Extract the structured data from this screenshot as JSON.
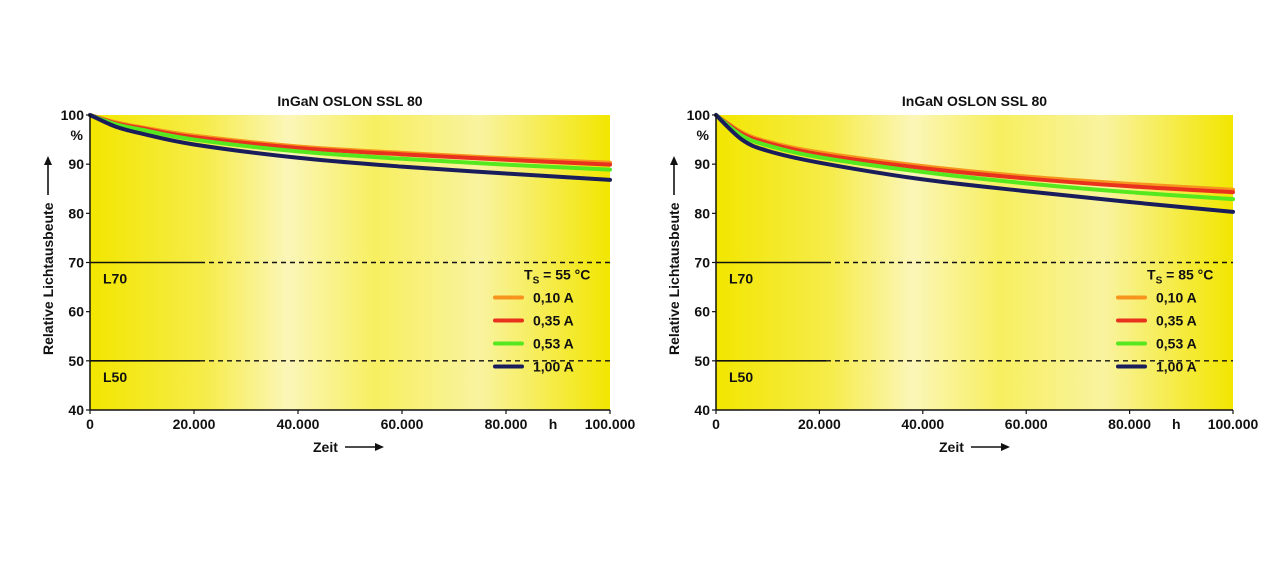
{
  "chart_data": [
    {
      "type": "line",
      "title": "InGaN OSLON SSL 80",
      "ylabel": "Relative Lichtausbeute",
      "yunit": "%",
      "xlabel": "Zeit",
      "xunit": "h",
      "xlim": [
        0,
        100000
      ],
      "ylim": [
        40,
        100
      ],
      "x_ticks": [
        0,
        20000,
        40000,
        60000,
        80000,
        100000
      ],
      "x_tick_labels": [
        "0",
        "20.000",
        "40.000",
        "60.000",
        "80.000",
        "100.000"
      ],
      "y_ticks": [
        40,
        50,
        60,
        70,
        80,
        90,
        100
      ],
      "y_tick_labels": [
        "40",
        "50",
        "60",
        "70",
        "80",
        "90",
        "100"
      ],
      "reference_lines": [
        {
          "label": "L70",
          "y": 70
        },
        {
          "label": "L50",
          "y": 50
        }
      ],
      "legend_title": {
        "main": "T",
        "sub": "S",
        "rest": " = 55 °C"
      },
      "legend_position": "bottom-right",
      "series": [
        {
          "name": "0,10 A",
          "color": "#f7941d",
          "x": [
            0,
            5000,
            10000,
            20000,
            40000,
            60000,
            80000,
            100000
          ],
          "y": [
            100,
            98.5,
            97.5,
            95.8,
            93.6,
            92.3,
            91.2,
            90.3
          ]
        },
        {
          "name": "0,35 A",
          "color": "#e8321e",
          "x": [
            0,
            5000,
            10000,
            20000,
            40000,
            60000,
            80000,
            100000
          ],
          "y": [
            100,
            98.3,
            97.3,
            95.5,
            93.3,
            92.0,
            90.9,
            89.9
          ]
        },
        {
          "name": "0,53 A",
          "color": "#55e81e",
          "x": [
            0,
            5000,
            10000,
            20000,
            40000,
            60000,
            80000,
            100000
          ],
          "y": [
            100,
            98.1,
            97.0,
            95.0,
            92.6,
            91.1,
            89.9,
            88.9
          ]
        },
        {
          "name": "1,00 A",
          "color": "#1a1d5c",
          "x": [
            0,
            5000,
            10000,
            20000,
            40000,
            60000,
            80000,
            100000
          ],
          "y": [
            100,
            97.6,
            96.2,
            94.0,
            91.3,
            89.5,
            88.1,
            86.8
          ]
        }
      ]
    },
    {
      "type": "line",
      "title": "InGaN OSLON SSL 80",
      "ylabel": "Relative Lichtausbeute",
      "yunit": "%",
      "xlabel": "Zeit",
      "xunit": "h",
      "xlim": [
        0,
        100000
      ],
      "ylim": [
        40,
        100
      ],
      "x_ticks": [
        0,
        20000,
        40000,
        60000,
        80000,
        100000
      ],
      "x_tick_labels": [
        "0",
        "20.000",
        "40.000",
        "60.000",
        "80.000",
        "100.000"
      ],
      "y_ticks": [
        40,
        50,
        60,
        70,
        80,
        90,
        100
      ],
      "y_tick_labels": [
        "40",
        "50",
        "60",
        "70",
        "80",
        "90",
        "100"
      ],
      "reference_lines": [
        {
          "label": "L70",
          "y": 70
        },
        {
          "label": "L50",
          "y": 50
        }
      ],
      "legend_title": {
        "main": "T",
        "sub": "S",
        "rest": " = 85 °C"
      },
      "legend_position": "bottom-right",
      "series": [
        {
          "name": "0,10 A",
          "color": "#f7941d",
          "x": [
            0,
            5000,
            10000,
            20000,
            40000,
            60000,
            80000,
            100000
          ],
          "y": [
            100,
            96.5,
            94.6,
            92.4,
            89.6,
            87.5,
            86.0,
            84.8
          ]
        },
        {
          "name": "0,35 A",
          "color": "#e8321e",
          "x": [
            0,
            5000,
            10000,
            20000,
            40000,
            60000,
            80000,
            100000
          ],
          "y": [
            100,
            96.2,
            94.3,
            92.0,
            89.2,
            87.1,
            85.5,
            84.3
          ]
        },
        {
          "name": "0,53 A",
          "color": "#55e81e",
          "x": [
            0,
            5000,
            10000,
            20000,
            40000,
            60000,
            80000,
            100000
          ],
          "y": [
            100,
            95.8,
            93.8,
            91.4,
            88.4,
            86.1,
            84.3,
            82.9
          ]
        },
        {
          "name": "1,00 A",
          "color": "#1a1d5c",
          "x": [
            0,
            5000,
            10000,
            20000,
            40000,
            60000,
            80000,
            100000
          ],
          "y": [
            100,
            95.0,
            92.7,
            90.3,
            86.9,
            84.5,
            82.3,
            80.3
          ]
        }
      ]
    }
  ]
}
